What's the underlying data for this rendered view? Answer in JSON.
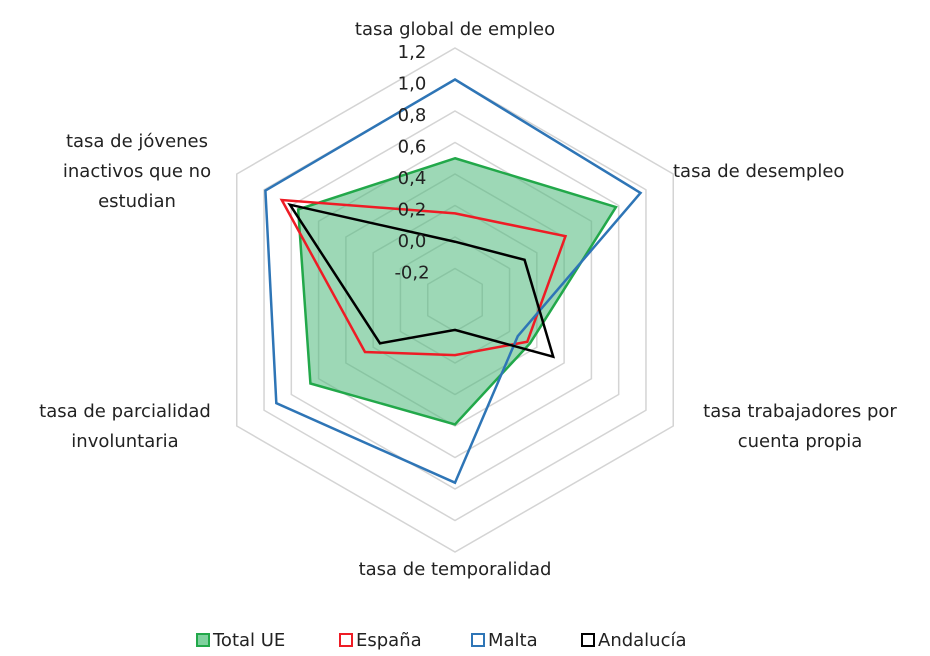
{
  "chart_data": {
    "type": "radar",
    "categories": [
      [
        "tasa global de empleo"
      ],
      [
        "tasa de desempleo"
      ],
      [
        "tasa trabajadores por",
        "cuenta propia"
      ],
      [
        "tasa de temporalidad"
      ],
      [
        "tasa de parcialidad",
        "involuntaria"
      ],
      [
        "tasa de jóvenes",
        "inactivos que no",
        "estudian"
      ]
    ],
    "series": [
      {
        "name": "Total UE",
        "color": "#22a84a",
        "values": [
          0.5,
          0.78,
          0.15,
          0.39,
          0.66,
          0.75
        ]
      },
      {
        "name": "España",
        "color": "#ee1c25",
        "values": [
          0.15,
          0.41,
          0.13,
          -0.05,
          0.26,
          0.87
        ]
      },
      {
        "name": "Malta",
        "color": "#2e75b6",
        "values": [
          1.0,
          0.96,
          0.06,
          0.76,
          0.91,
          0.99
        ]
      },
      {
        "name": "Andalucía",
        "color": "#000000",
        "values": [
          -0.03,
          0.11,
          0.32,
          -0.21,
          0.15,
          0.81
        ]
      }
    ],
    "ylim": [
      -0.4,
      1.2
    ],
    "yticks": [
      {
        "value": -0.2,
        "label": "-0,2"
      },
      {
        "value": 0,
        "label": "0,0"
      },
      {
        "value": 0.2,
        "label": "0,2"
      },
      {
        "value": 0.4,
        "label": "0,4"
      },
      {
        "value": 0.6,
        "label": "0,6"
      },
      {
        "value": 0.8,
        "label": "0,8"
      },
      {
        "value": 1.0,
        "label": "1,0"
      },
      {
        "value": 1.2,
        "label": "1,2"
      }
    ],
    "grid": true
  }
}
